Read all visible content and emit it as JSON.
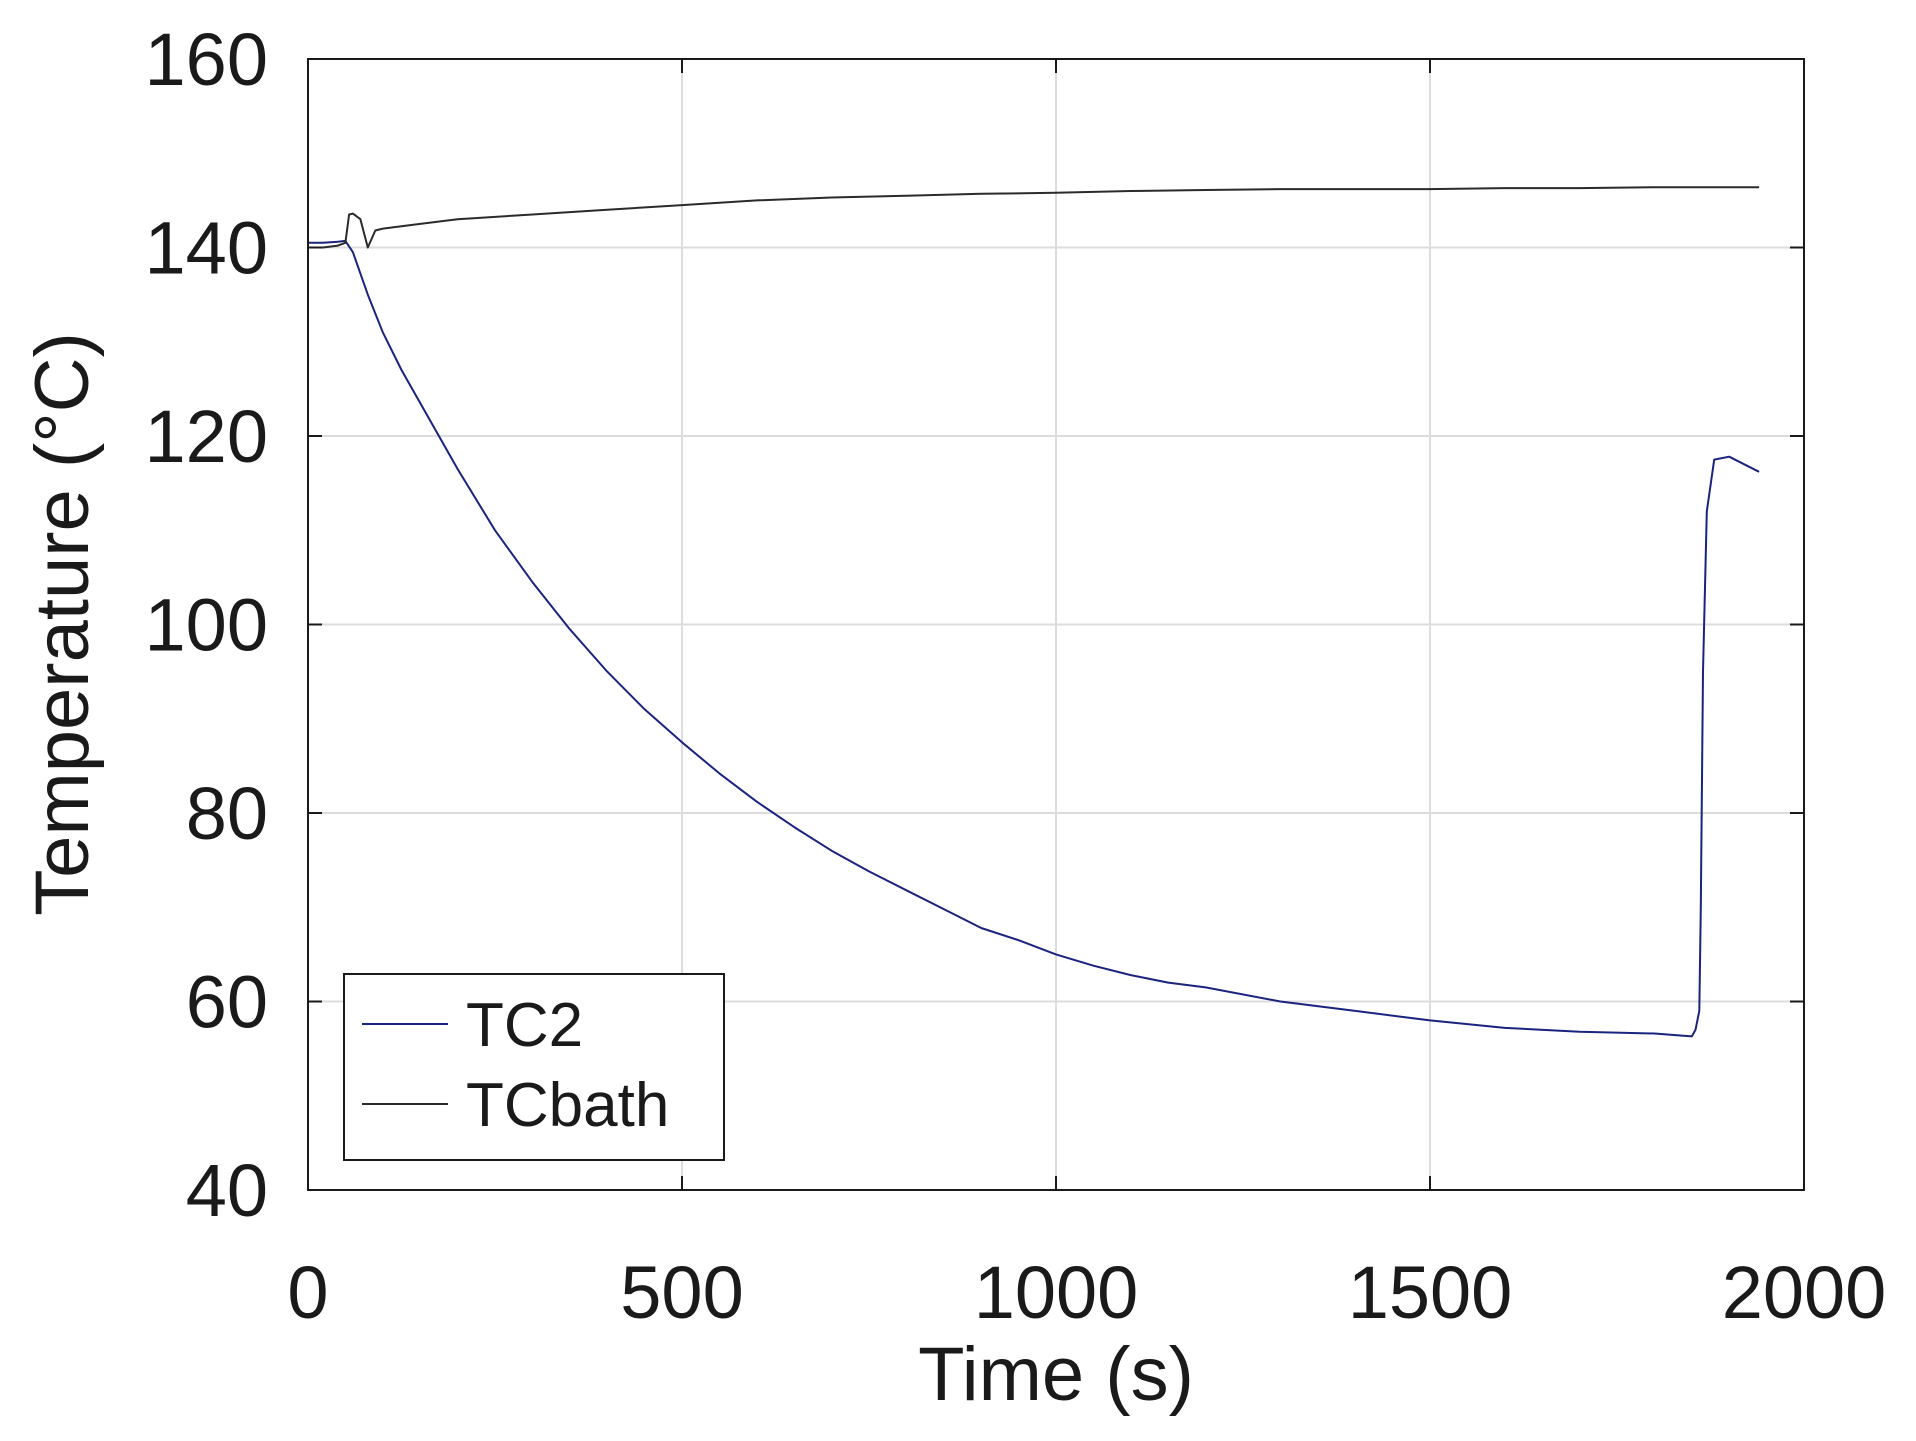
{
  "chart_data": {
    "type": "line",
    "title": "",
    "xlabel": "Time (s)",
    "ylabel": "Temperature (°C)",
    "xlim": [
      0,
      2000
    ],
    "ylim": [
      40,
      160
    ],
    "xticks": [
      0,
      500,
      1000,
      1500,
      2000
    ],
    "yticks": [
      40,
      60,
      80,
      100,
      120,
      140,
      160
    ],
    "x_tick_labels": [
      "0",
      "500",
      "1000",
      "1500",
      "2000"
    ],
    "y_tick_labels": [
      "40",
      "60",
      "80",
      "100",
      "120",
      "140",
      "160"
    ],
    "grid": true,
    "legend_position": "bottom-left",
    "series": [
      {
        "name": "TC2",
        "color": "#1a237e",
        "x": [
          0,
          20,
          40,
          50,
          60,
          80,
          100,
          125,
          150,
          200,
          250,
          300,
          350,
          400,
          450,
          500,
          550,
          600,
          650,
          700,
          750,
          800,
          850,
          900,
          950,
          1000,
          1050,
          1100,
          1150,
          1200,
          1300,
          1400,
          1500,
          1600,
          1700,
          1800,
          1850,
          1855,
          1860,
          1862,
          1865,
          1870,
          1880,
          1900,
          1920,
          1940
        ],
        "y": [
          140.5,
          140.5,
          140.6,
          140.7,
          139.5,
          135,
          131,
          127,
          123.5,
          116.5,
          110,
          104.5,
          99.5,
          95,
          91,
          87.5,
          84.2,
          81.2,
          78.5,
          76,
          73.8,
          71.8,
          69.8,
          67.8,
          66.5,
          65,
          63.8,
          62.8,
          62,
          61.5,
          60,
          59,
          58,
          57.2,
          56.8,
          56.6,
          56.3,
          57,
          59,
          70,
          95,
          112,
          117.5,
          117.8,
          117,
          116.2
        ]
      },
      {
        "name": "TCbath",
        "color": "#2b2b2b",
        "x": [
          0,
          20,
          40,
          50,
          55,
          60,
          70,
          80,
          90,
          100,
          150,
          200,
          300,
          400,
          500,
          600,
          700,
          800,
          900,
          1000,
          1100,
          1200,
          1300,
          1400,
          1500,
          1600,
          1700,
          1800,
          1900,
          1940
        ],
        "y": [
          140,
          140,
          140.2,
          140.5,
          143.5,
          143.6,
          143,
          140,
          141.8,
          142,
          142.5,
          143,
          143.5,
          144,
          144.5,
          145,
          145.3,
          145.5,
          145.7,
          145.8,
          146,
          146.1,
          146.2,
          146.2,
          146.2,
          146.3,
          146.3,
          146.4,
          146.4,
          146.4
        ]
      }
    ]
  }
}
